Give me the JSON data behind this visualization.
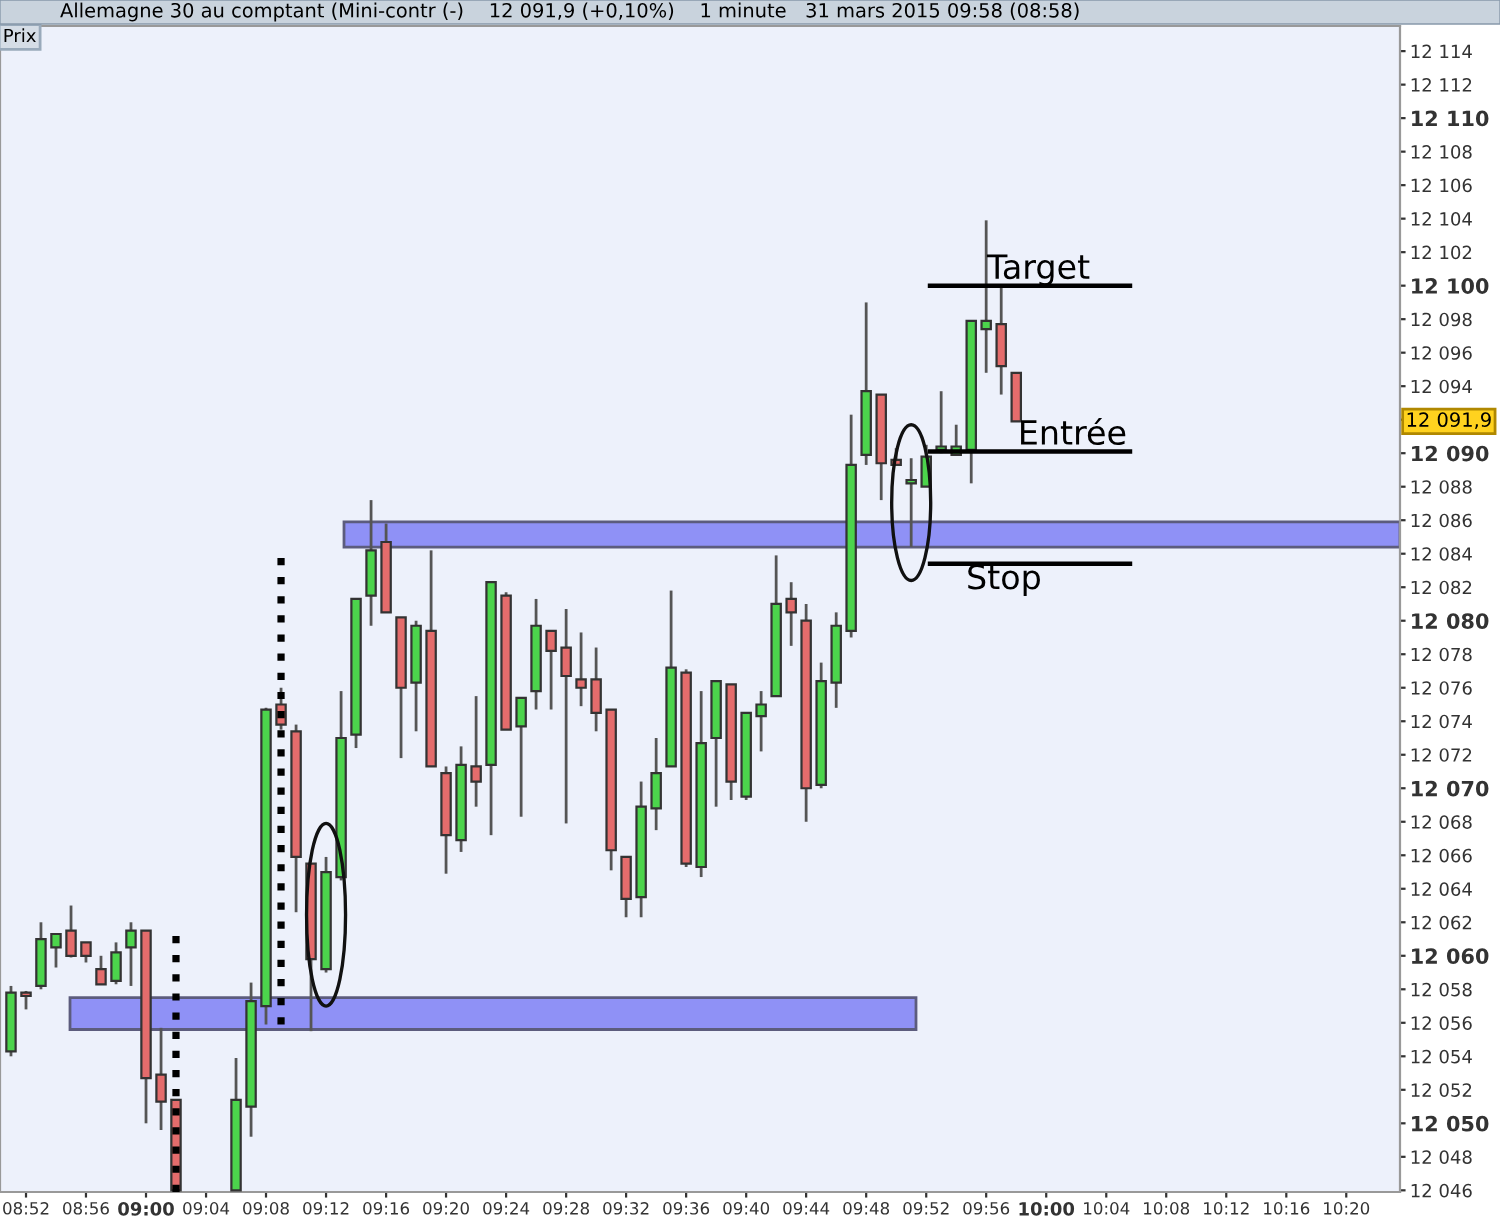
{
  "chart_data": {
    "type": "candlestick",
    "title": "Allemagne 30 au comptant (Mini-contr (-)    12 091,9 (+0,10%)    1 minute   31 mars 2015 09:58 (08:58)",
    "ylabel": "Prix",
    "x": [
      8.85,
      8.8667,
      8.8833,
      8.9,
      8.9167,
      8.9333,
      8.95,
      8.9667,
      8.9833,
      9.0,
      9.0167,
      9.0333,
      9.1,
      9.1167,
      9.1333,
      9.15,
      9.1667,
      9.1833,
      9.2,
      9.2167,
      9.2333,
      9.25,
      9.2667,
      9.2833,
      9.3,
      9.3167,
      9.3333,
      9.35,
      9.3667,
      9.3833,
      9.4,
      9.4167,
      9.4333,
      9.45,
      9.4667,
      9.4833,
      9.5,
      9.5167,
      9.5333,
      9.55,
      9.5667,
      9.5833,
      9.6,
      9.6167,
      9.6333,
      9.65,
      9.6667,
      9.6833,
      9.7,
      9.7167,
      9.7333,
      9.75,
      9.7667,
      9.7833,
      9.8,
      9.8167,
      9.8333,
      9.85,
      9.8667,
      9.8833,
      9.9,
      9.9167,
      9.9333,
      9.95,
      9.9667
    ],
    "ohlc": [
      [
        12054.3,
        12058.2,
        12054.0,
        12057.8
      ],
      [
        12057.8,
        12057.9,
        12056.8,
        12057.6
      ],
      [
        12058.2,
        12062.0,
        12058.0,
        12061.0
      ],
      [
        12060.5,
        12061.3,
        12059.3,
        12061.3
      ],
      [
        12061.5,
        12063.0,
        12059.9,
        12060.0
      ],
      [
        12060.8,
        12060.8,
        12059.6,
        12060.0
      ],
      [
        12059.2,
        12060.0,
        12058.3,
        12058.3
      ],
      [
        12058.5,
        12060.8,
        12058.3,
        12060.2
      ],
      [
        12060.5,
        12062.0,
        12058.2,
        12061.5
      ],
      [
        12061.5,
        12061.5,
        12050.0,
        12052.7
      ],
      [
        12052.9,
        12055.7,
        12049.6,
        12051.3
      ],
      [
        12051.4,
        12051.4,
        12046.0,
        12046.0
      ],
      [
        12046.0,
        12053.9,
        12046.0,
        12051.4
      ],
      [
        12051.0,
        12058.4,
        12049.2,
        12057.3
      ],
      [
        12057.0,
        12074.8,
        12055.9,
        12074.7
      ],
      [
        12075.0,
        12076.0,
        12073.5,
        12073.8
      ],
      [
        12073.4,
        12073.8,
        12062.6,
        12065.9
      ],
      [
        12065.5,
        12065.5,
        12055.5,
        12059.8
      ],
      [
        12059.2,
        12065.9,
        12059.0,
        12065.0
      ],
      [
        12064.7,
        12075.8,
        12064.5,
        12073.0
      ],
      [
        12073.2,
        12081.3,
        12072.4,
        12081.3
      ],
      [
        12081.5,
        12087.2,
        12079.7,
        12084.2
      ],
      [
        12084.7,
        12085.8,
        12080.5,
        12080.5
      ],
      [
        12080.2,
        12080.2,
        12071.8,
        12076.0
      ],
      [
        12076.3,
        12080.0,
        12073.4,
        12079.7
      ],
      [
        12079.4,
        12084.2,
        12071.3,
        12071.3
      ],
      [
        12070.9,
        12071.3,
        12064.9,
        12067.2
      ],
      [
        12066.9,
        12072.5,
        12066.2,
        12071.4
      ],
      [
        12071.3,
        12075.5,
        12068.9,
        12070.4
      ],
      [
        12071.4,
        12082.3,
        12067.2,
        12082.3
      ],
      [
        12081.5,
        12081.7,
        12073.5,
        12073.5
      ],
      [
        12073.7,
        12075.4,
        12068.3,
        12075.4
      ],
      [
        12075.8,
        12081.3,
        12074.7,
        12079.7
      ],
      [
        12079.4,
        12079.4,
        12074.7,
        12078.2
      ],
      [
        12078.4,
        12080.7,
        12067.9,
        12076.7
      ],
      [
        12076.5,
        12079.3,
        12074.9,
        12076.0
      ],
      [
        12076.5,
        12078.4,
        12073.4,
        12074.5
      ],
      [
        12074.7,
        12074.7,
        12065.1,
        12066.3
      ],
      [
        12065.9,
        12065.9,
        12062.3,
        12063.4
      ],
      [
        12063.5,
        12070.4,
        12062.3,
        12068.9
      ],
      [
        12068.8,
        12073.0,
        12067.5,
        12070.9
      ],
      [
        12071.3,
        12081.8,
        12071.3,
        12077.2
      ],
      [
        12076.9,
        12077.1,
        12065.3,
        12065.5
      ],
      [
        12065.3,
        12075.8,
        12064.7,
        12072.7
      ],
      [
        12073.0,
        12076.4,
        12068.9,
        12076.4
      ],
      [
        12076.2,
        12076.2,
        12069.3,
        12070.4
      ],
      [
        12069.5,
        12074.5,
        12069.3,
        12074.5
      ],
      [
        12074.3,
        12075.8,
        12072.2,
        12075.0
      ],
      [
        12075.5,
        12083.9,
        12075.5,
        12081.0
      ],
      [
        12081.3,
        12082.3,
        12078.5,
        12080.5
      ],
      [
        12080.0,
        12081.0,
        12068.0,
        12070.0
      ],
      [
        12070.2,
        12077.5,
        12070.0,
        12076.4
      ],
      [
        12076.3,
        12080.5,
        12074.8,
        12079.7
      ],
      [
        12079.4,
        12092.3,
        12079.0,
        12089.3
      ],
      [
        12089.9,
        12099.0,
        12089.3,
        12093.7
      ],
      [
        12093.5,
        12093.5,
        12087.2,
        12089.4
      ],
      [
        12089.6,
        12090.3,
        12089.3,
        12089.3
      ],
      [
        12088.2,
        12089.7,
        12084.4,
        12088.4
      ],
      [
        12088.0,
        12090.5,
        12088.0,
        12089.8
      ],
      [
        12090.2,
        12093.7,
        12090.0,
        12090.4
      ],
      [
        12089.9,
        12091.7,
        12089.9,
        12090.4
      ],
      [
        12090.2,
        12097.9,
        12088.2,
        12097.9
      ],
      [
        12097.4,
        12103.9,
        12094.8,
        12097.9
      ],
      [
        12097.7,
        12100.0,
        12093.5,
        12095.2
      ],
      [
        12094.8,
        12094.8,
        12091.9,
        12091.9
      ]
    ],
    "colors": [
      "#4cd44c",
      "#e46c6c",
      "#4cd44c",
      "#4cd44c",
      "#e46c6c",
      "#e46c6c",
      "#e46c6c",
      "#4cd44c",
      "#4cd44c",
      "#e46c6c",
      "#e46c6c",
      "#e46c6c",
      "#4cd44c",
      "#4cd44c",
      "#4cd44c",
      "#e46c6c",
      "#e46c6c",
      "#e46c6c",
      "#4cd44c",
      "#4cd44c",
      "#4cd44c",
      "#4cd44c",
      "#e46c6c",
      "#e46c6c",
      "#4cd44c",
      "#e46c6c",
      "#e46c6c",
      "#4cd44c",
      "#e46c6c",
      "#4cd44c",
      "#e46c6c",
      "#4cd44c",
      "#4cd44c",
      "#e46c6c",
      "#e46c6c",
      "#e46c6c",
      "#e46c6c",
      "#e46c6c",
      "#e46c6c",
      "#4cd44c",
      "#4cd44c",
      "#4cd44c",
      "#e46c6c",
      "#4cd44c",
      "#4cd44c",
      "#e46c6c",
      "#4cd44c",
      "#4cd44c",
      "#4cd44c",
      "#e46c6c",
      "#e46c6c",
      "#4cd44c",
      "#4cd44c",
      "#4cd44c",
      "#4cd44c",
      "#e46c6c",
      "#e46c6c",
      "#4cd44c",
      "#4cd44c",
      "#4cd44c",
      "#4cd44c",
      "#4cd44c",
      "#4cd44c",
      "#e46c6c",
      "#e46c6c"
    ],
    "xlim": [
      8.8378,
      10.393
    ],
    "xticks": [
      {
        "value": 8.8667,
        "label": "08:52"
      },
      {
        "value": 8.9333,
        "label": "08:56"
      },
      {
        "value": 9.0,
        "label": "09:00"
      },
      {
        "value": 9.0667,
        "label": "09:04"
      },
      {
        "value": 9.1333,
        "label": "09:08"
      },
      {
        "value": 9.2,
        "label": "09:12"
      },
      {
        "value": 9.2667,
        "label": "09:16"
      },
      {
        "value": 9.3333,
        "label": "09:20"
      },
      {
        "value": 9.4,
        "label": "09:24"
      },
      {
        "value": 9.4667,
        "label": "09:28"
      },
      {
        "value": 9.5333,
        "label": "09:32"
      },
      {
        "value": 9.6,
        "label": "09:36"
      },
      {
        "value": 9.6667,
        "label": "09:40"
      },
      {
        "value": 9.7333,
        "label": "09:44"
      },
      {
        "value": 9.8,
        "label": "09:48"
      },
      {
        "value": 9.8667,
        "label": "09:52"
      },
      {
        "value": 9.9333,
        "label": "09:56"
      },
      {
        "value": 10.0,
        "label": "10:00"
      },
      {
        "value": 10.0667,
        "label": "10:04"
      },
      {
        "value": 10.1333,
        "label": "10:08"
      },
      {
        "value": 10.2,
        "label": "10:12"
      },
      {
        "value": 10.2667,
        "label": "10:16"
      },
      {
        "value": 10.3333,
        "label": "10:20"
      }
    ],
    "ylim": [
      12045.9,
      12115.5
    ],
    "yticks": [
      {
        "value": 12046,
        "label": "12 046"
      },
      {
        "value": 12048,
        "label": "12 048"
      },
      {
        "value": 12050,
        "label": "12 050"
      },
      {
        "value": 12052,
        "label": "12 052"
      },
      {
        "value": 12054,
        "label": "12 054"
      },
      {
        "value": 12056,
        "label": "12 056"
      },
      {
        "value": 12058,
        "label": "12 058"
      },
      {
        "value": 12060,
        "label": "12 060"
      },
      {
        "value": 12062,
        "label": "12 062"
      },
      {
        "value": 12064,
        "label": "12 064"
      },
      {
        "value": 12066,
        "label": "12 066"
      },
      {
        "value": 12068,
        "label": "12 068"
      },
      {
        "value": 12070,
        "label": "12 070"
      },
      {
        "value": 12072,
        "label": "12 072"
      },
      {
        "value": 12074,
        "label": "12 074"
      },
      {
        "value": 12076,
        "label": "12 076"
      },
      {
        "value": 12078,
        "label": "12 078"
      },
      {
        "value": 12080,
        "label": "12 080"
      },
      {
        "value": 12082,
        "label": "12 082"
      },
      {
        "value": 12084,
        "label": "12 084"
      },
      {
        "value": 12086,
        "label": "12 086"
      },
      {
        "value": 12088,
        "label": "12 088"
      },
      {
        "value": 12090,
        "label": "12 090"
      },
      {
        "value": 12092,
        "label": null
      },
      {
        "value": 12094,
        "label": "12 094"
      },
      {
        "value": 12096,
        "label": "12 096"
      },
      {
        "value": 12098,
        "label": "12 098"
      },
      {
        "value": 12100,
        "label": "12 100"
      },
      {
        "value": 12102,
        "label": "12 102"
      },
      {
        "value": 12104,
        "label": "12 104"
      },
      {
        "value": 12106,
        "label": "12 106"
      },
      {
        "value": 12108,
        "label": "12 108"
      },
      {
        "value": 12110,
        "label": "12 110"
      },
      {
        "value": 12112,
        "label": "12 112"
      },
      {
        "value": 12114,
        "label": "12 114"
      }
    ],
    "ref_lines": [
      {
        "axis": "y",
        "value": 12100.0,
        "label": "Target",
        "color": "#000000",
        "line_style": "solid"
      },
      {
        "axis": "y",
        "value": 12090.1,
        "label": "Entrée",
        "color": "#000000",
        "line_style": "solid"
      },
      {
        "axis": "y",
        "value": 12083.4,
        "label": "Stop",
        "color": "#000000",
        "line_style": "solid"
      },
      {
        "axis": "x",
        "value": 9.0333,
        "label": null,
        "color": "#000000",
        "line_style": "dotted"
      },
      {
        "axis": "x",
        "value": 9.15,
        "label": null,
        "color": "#000000",
        "line_style": "dotted"
      }
    ],
    "bands": [
      {
        "axis": "y",
        "from": 12084.4,
        "to": 12085.9,
        "label": null,
        "color": "#8a8cf6"
      },
      {
        "axis": "y",
        "from": 12055.6,
        "to": 12057.5,
        "label": null,
        "color": "#8a8cf6"
      }
    ],
    "annotations": [
      "12 091,9"
    ],
    "grid": false,
    "legend": false
  }
}
